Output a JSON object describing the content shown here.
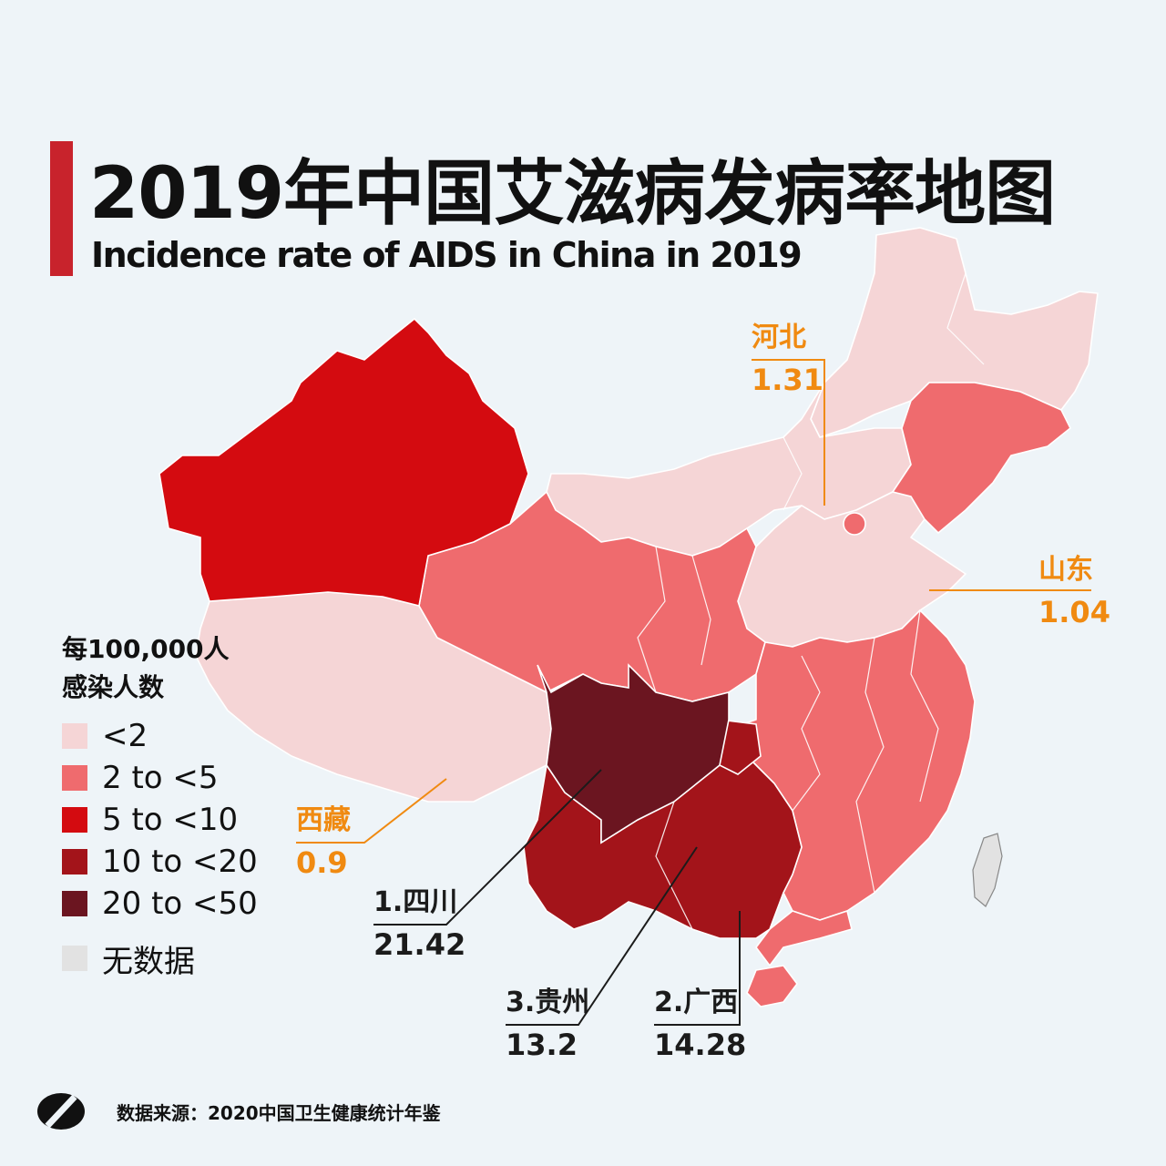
{
  "title_zh": "2019年中国艾滋病发病率地图",
  "title_en": "Incidence rate of AIDS in China in 2019",
  "legend": {
    "title_line1": "每100,000人",
    "title_line2": "感染人数",
    "items": [
      {
        "label": "<2",
        "color": "#f5d5d6"
      },
      {
        "label": "2 to <5",
        "color": "#ef6b6e"
      },
      {
        "label": "5 to <10",
        "color": "#d40b10"
      },
      {
        "label": "10 to <20",
        "color": "#a3141a"
      },
      {
        "label": "20 to <50",
        "color": "#6b1520"
      }
    ],
    "no_data": {
      "label": "无数据",
      "color": "#e2e2e2"
    }
  },
  "callouts": {
    "hebei": {
      "name": "河北",
      "value": "1.31"
    },
    "shandong": {
      "name": "山东",
      "value": "1.04"
    },
    "xizang": {
      "name": "西藏",
      "value": "0.9"
    },
    "sichuan": {
      "name": "1.四川",
      "value": "21.42"
    },
    "guizhou": {
      "name": "3.贵州",
      "value": "13.2"
    },
    "guangxi": {
      "name": "2.广西",
      "value": "14.28"
    }
  },
  "source": "数据来源：2020中国卫生健康统计年鉴",
  "colors": {
    "accent": "#c8232c",
    "callout_orange": "#f08a11",
    "background": "#eef4f8"
  },
  "logo_icon": "brand-logo-icon"
}
